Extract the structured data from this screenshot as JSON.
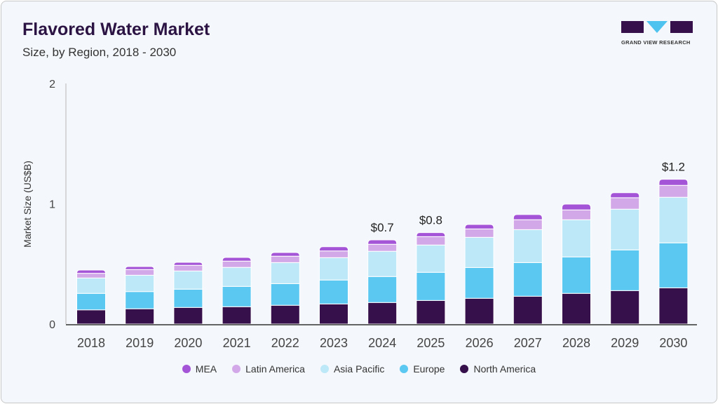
{
  "header": {
    "title": "Flavored Water Market",
    "subtitle": "Size, by Region, 2018 - 2030",
    "logo_text": "GRAND VIEW RESEARCH"
  },
  "chart_data": {
    "type": "bar",
    "stacked": true,
    "title": "Flavored Water Market",
    "subtitle": "Size, by Region, 2018 - 2030",
    "xlabel": "",
    "ylabel": "Market Size (US$B)",
    "ylim": [
      0,
      2
    ],
    "yticks": [
      0,
      1,
      2
    ],
    "categories": [
      "2018",
      "2019",
      "2020",
      "2021",
      "2022",
      "2023",
      "2024",
      "2025",
      "2026",
      "2027",
      "2028",
      "2029",
      "2030"
    ],
    "series": [
      {
        "name": "North America",
        "color": "#35104a",
        "values": [
          0.118,
          0.127,
          0.138,
          0.144,
          0.156,
          0.167,
          0.179,
          0.196,
          0.214,
          0.231,
          0.255,
          0.278,
          0.301
        ]
      },
      {
        "name": "Europe",
        "color": "#5bc8f2",
        "values": [
          0.137,
          0.143,
          0.152,
          0.169,
          0.18,
          0.199,
          0.216,
          0.234,
          0.256,
          0.28,
          0.303,
          0.338,
          0.374
        ]
      },
      {
        "name": "Asia Pacific",
        "color": "#bde8f8",
        "values": [
          0.128,
          0.136,
          0.151,
          0.158,
          0.175,
          0.186,
          0.21,
          0.227,
          0.251,
          0.274,
          0.309,
          0.339,
          0.379
        ]
      },
      {
        "name": "Latin America",
        "color": "#d3a8e8",
        "values": [
          0.039,
          0.047,
          0.047,
          0.052,
          0.053,
          0.056,
          0.058,
          0.07,
          0.07,
          0.082,
          0.082,
          0.095,
          0.099
        ]
      },
      {
        "name": "MEA",
        "color": "#a454d6",
        "values": [
          0.027,
          0.025,
          0.025,
          0.031,
          0.031,
          0.035,
          0.037,
          0.033,
          0.037,
          0.043,
          0.048,
          0.042,
          0.05
        ]
      }
    ],
    "annotations": [
      {
        "category": "2024",
        "text": "$0.7"
      },
      {
        "category": "2025",
        "text": "$0.8"
      },
      {
        "category": "2030",
        "text": "$1.2"
      }
    ],
    "legend": {
      "placement": "bottom",
      "order": [
        "MEA",
        "Latin America",
        "Asia Pacific",
        "Europe",
        "North America"
      ]
    }
  }
}
